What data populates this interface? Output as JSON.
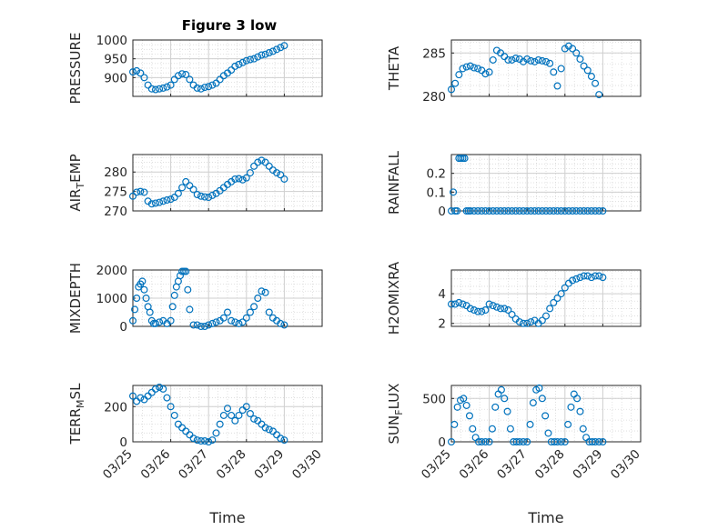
{
  "figure": {
    "title": "Figure 3 low",
    "marker_color": "#0072BD"
  },
  "chart_data": [
    {
      "type": "scatter",
      "ylabel": "PRESSURE",
      "xlim": [
        "03/25",
        "03/30"
      ],
      "ylim": [
        850,
        1000
      ],
      "yticks": [
        900,
        950,
        1000
      ],
      "x_days": [
        0.0,
        0.1,
        0.2,
        0.3,
        0.4,
        0.5,
        0.6,
        0.7,
        0.8,
        0.9,
        1.0,
        1.1,
        1.2,
        1.3,
        1.4,
        1.5,
        1.6,
        1.7,
        1.8,
        1.9,
        2.0,
        2.1,
        2.2,
        2.3,
        2.4,
        2.5,
        2.6,
        2.7,
        2.8,
        2.9,
        3.0,
        3.1,
        3.2,
        3.3,
        3.4,
        3.5,
        3.6,
        3.7,
        3.8,
        3.9,
        4.0
      ],
      "y": [
        915,
        918,
        912,
        900,
        880,
        870,
        868,
        870,
        872,
        875,
        880,
        895,
        905,
        910,
        908,
        895,
        880,
        872,
        870,
        874,
        876,
        880,
        885,
        895,
        905,
        912,
        920,
        930,
        935,
        940,
        945,
        948,
        950,
        955,
        960,
        962,
        966,
        970,
        975,
        980,
        985
      ]
    },
    {
      "type": "scatter",
      "ylabel": "THETA",
      "xlim": [
        "03/25",
        "03/30"
      ],
      "ylim": [
        280,
        286.5
      ],
      "yticks": [
        280,
        285
      ],
      "x_days": [
        0.0,
        0.1,
        0.2,
        0.3,
        0.4,
        0.5,
        0.6,
        0.7,
        0.8,
        0.9,
        1.0,
        1.1,
        1.2,
        1.3,
        1.4,
        1.5,
        1.6,
        1.7,
        1.8,
        1.9,
        2.0,
        2.1,
        2.2,
        2.3,
        2.4,
        2.5,
        2.6,
        2.7,
        2.8,
        2.9,
        3.0,
        3.1,
        3.2,
        3.3,
        3.4,
        3.5,
        3.6,
        3.7,
        3.8,
        3.9
      ],
      "y": [
        280.8,
        281.5,
        282.5,
        283.2,
        283.4,
        283.5,
        283.3,
        283.2,
        283.0,
        282.6,
        282.8,
        284.2,
        285.3,
        285.0,
        284.6,
        284.2,
        284.2,
        284.4,
        284.3,
        284.0,
        284.3,
        284.1,
        284.0,
        284.2,
        284.1,
        284.0,
        283.8,
        282.8,
        281.2,
        283.2,
        285.5,
        285.8,
        285.5,
        285.0,
        284.3,
        283.5,
        283.0,
        282.3,
        281.5,
        280.2
      ]
    },
    {
      "type": "scatter",
      "ylabel": "AIR_TEMP",
      "xlim": [
        "03/25",
        "03/30"
      ],
      "ylim": [
        270,
        284.5
      ],
      "yticks": [
        270,
        275,
        280
      ],
      "x_days": [
        0.0,
        0.1,
        0.2,
        0.3,
        0.4,
        0.5,
        0.6,
        0.7,
        0.8,
        0.9,
        1.0,
        1.1,
        1.2,
        1.3,
        1.4,
        1.5,
        1.6,
        1.7,
        1.8,
        1.9,
        2.0,
        2.1,
        2.2,
        2.3,
        2.4,
        2.5,
        2.6,
        2.7,
        2.8,
        2.9,
        3.0,
        3.1,
        3.2,
        3.3,
        3.4,
        3.5,
        3.6,
        3.7,
        3.8,
        3.9,
        4.0
      ],
      "y": [
        273.8,
        274.8,
        275.0,
        274.8,
        272.5,
        271.8,
        272.0,
        272.2,
        272.5,
        272.8,
        273.0,
        273.5,
        274.5,
        276.0,
        277.5,
        276.5,
        275.5,
        274.2,
        273.8,
        273.6,
        273.5,
        274.0,
        274.5,
        275.2,
        276.0,
        276.8,
        277.5,
        278.2,
        278.3,
        278.0,
        278.5,
        279.8,
        281.5,
        282.5,
        283.0,
        282.5,
        281.5,
        280.5,
        279.8,
        279.3,
        278.2
      ]
    },
    {
      "type": "scatter",
      "ylabel": "RAINFALL",
      "xlim": [
        "03/25",
        "03/30"
      ],
      "ylim": [
        0,
        0.3
      ],
      "yticks": [
        0,
        0.1,
        0.2
      ],
      "x_days": [
        0.0,
        0.05,
        0.1,
        0.15,
        0.2,
        0.25,
        0.3,
        0.35,
        0.4,
        0.45,
        0.5,
        0.6,
        0.7,
        0.8,
        0.9,
        1.0,
        1.1,
        1.2,
        1.3,
        1.4,
        1.5,
        1.6,
        1.7,
        1.8,
        1.9,
        2.0,
        2.1,
        2.2,
        2.3,
        2.4,
        2.5,
        2.6,
        2.7,
        2.8,
        2.9,
        3.0,
        3.1,
        3.2,
        3.3,
        3.4,
        3.5,
        3.6,
        3.7,
        3.8,
        3.9,
        4.0
      ],
      "y": [
        0,
        0.1,
        0,
        0,
        0.28,
        0.28,
        0.28,
        0.28,
        0,
        0,
        0,
        0,
        0,
        0,
        0,
        0,
        0,
        0,
        0,
        0,
        0,
        0,
        0,
        0,
        0,
        0,
        0,
        0,
        0,
        0,
        0,
        0,
        0,
        0,
        0,
        0,
        0,
        0,
        0,
        0,
        0,
        0,
        0,
        0,
        0,
        0
      ]
    },
    {
      "type": "scatter",
      "ylabel": "MIXDEPTH",
      "xlim": [
        "03/25",
        "03/30"
      ],
      "ylim": [
        0,
        2000
      ],
      "yticks": [
        0,
        1000,
        2000
      ],
      "x_days": [
        0.0,
        0.05,
        0.1,
        0.15,
        0.2,
        0.25,
        0.3,
        0.35,
        0.4,
        0.45,
        0.5,
        0.55,
        0.6,
        0.7,
        0.8,
        0.9,
        1.0,
        1.05,
        1.1,
        1.15,
        1.2,
        1.25,
        1.3,
        1.35,
        1.4,
        1.45,
        1.5,
        1.6,
        1.7,
        1.8,
        1.9,
        2.0,
        2.1,
        2.2,
        2.3,
        2.4,
        2.5,
        2.6,
        2.7,
        2.8,
        2.9,
        3.0,
        3.1,
        3.2,
        3.3,
        3.4,
        3.5,
        3.6,
        3.7,
        3.8,
        3.9,
        4.0
      ],
      "y": [
        200,
        600,
        1000,
        1400,
        1500,
        1600,
        1300,
        1000,
        700,
        500,
        200,
        100,
        100,
        150,
        200,
        100,
        200,
        700,
        1100,
        1400,
        1600,
        1800,
        1950,
        1950,
        1950,
        1300,
        600,
        50,
        50,
        0,
        0,
        50,
        100,
        150,
        200,
        300,
        500,
        200,
        150,
        100,
        150,
        300,
        500,
        700,
        1000,
        1250,
        1200,
        500,
        300,
        200,
        100,
        50
      ]
    },
    {
      "type": "scatter",
      "ylabel": "H2OMIXRA",
      "xlim": [
        "03/25",
        "03/30"
      ],
      "ylim": [
        1.8,
        5.6
      ],
      "yticks": [
        2,
        4
      ],
      "x_days": [
        0.0,
        0.1,
        0.2,
        0.3,
        0.4,
        0.5,
        0.6,
        0.7,
        0.8,
        0.9,
        1.0,
        1.1,
        1.2,
        1.3,
        1.4,
        1.5,
        1.6,
        1.7,
        1.8,
        1.9,
        2.0,
        2.1,
        2.2,
        2.3,
        2.4,
        2.5,
        2.6,
        2.7,
        2.8,
        2.9,
        3.0,
        3.1,
        3.2,
        3.3,
        3.4,
        3.5,
        3.6,
        3.7,
        3.8,
        3.9,
        4.0
      ],
      "y": [
        3.3,
        3.3,
        3.4,
        3.3,
        3.2,
        3.0,
        2.9,
        2.8,
        2.8,
        2.9,
        3.3,
        3.2,
        3.1,
        3.0,
        3.0,
        2.9,
        2.6,
        2.3,
        2.1,
        2.0,
        2.0,
        2.1,
        2.2,
        2.0,
        2.2,
        2.5,
        3.0,
        3.4,
        3.7,
        4.0,
        4.4,
        4.7,
        4.9,
        5.0,
        5.1,
        5.2,
        5.2,
        5.1,
        5.2,
        5.2,
        5.1
      ]
    },
    {
      "type": "scatter",
      "ylabel": "TERR_MSL",
      "xlim": [
        "03/25",
        "03/30"
      ],
      "ylim": [
        0,
        320
      ],
      "yticks": [
        0,
        200
      ],
      "x_days": [
        0.0,
        0.1,
        0.2,
        0.3,
        0.4,
        0.5,
        0.6,
        0.7,
        0.8,
        0.9,
        1.0,
        1.1,
        1.2,
        1.3,
        1.4,
        1.5,
        1.6,
        1.7,
        1.8,
        1.9,
        2.0,
        2.1,
        2.2,
        2.3,
        2.4,
        2.5,
        2.6,
        2.7,
        2.8,
        2.9,
        3.0,
        3.1,
        3.2,
        3.3,
        3.4,
        3.5,
        3.6,
        3.7,
        3.8,
        3.9,
        4.0
      ],
      "y": [
        260,
        230,
        250,
        240,
        260,
        280,
        300,
        310,
        300,
        250,
        200,
        150,
        100,
        80,
        60,
        40,
        20,
        10,
        5,
        5,
        0,
        10,
        50,
        100,
        150,
        190,
        150,
        120,
        150,
        180,
        200,
        160,
        130,
        120,
        100,
        80,
        70,
        60,
        40,
        20,
        10
      ]
    },
    {
      "type": "scatter",
      "ylabel": "SUN_FLUX",
      "xlim": [
        "03/25",
        "03/30"
      ],
      "ylim": [
        0,
        650
      ],
      "yticks": [
        0,
        500
      ],
      "x_days": [
        0.0,
        0.08,
        0.16,
        0.24,
        0.32,
        0.4,
        0.48,
        0.56,
        0.64,
        0.72,
        0.8,
        0.9,
        1.0,
        1.08,
        1.16,
        1.24,
        1.32,
        1.4,
        1.48,
        1.56,
        1.64,
        1.72,
        1.8,
        1.9,
        2.0,
        2.08,
        2.16,
        2.24,
        2.32,
        2.4,
        2.48,
        2.56,
        2.64,
        2.72,
        2.8,
        2.9,
        3.0,
        3.08,
        3.16,
        3.24,
        3.32,
        3.4,
        3.48,
        3.56,
        3.64,
        3.72,
        3.8,
        3.9,
        4.0
      ],
      "y": [
        0,
        200,
        400,
        480,
        500,
        420,
        300,
        150,
        50,
        0,
        0,
        0,
        0,
        150,
        400,
        550,
        600,
        500,
        350,
        150,
        0,
        0,
        0,
        0,
        0,
        200,
        450,
        600,
        620,
        500,
        300,
        100,
        0,
        0,
        0,
        0,
        0,
        200,
        400,
        550,
        500,
        350,
        150,
        50,
        0,
        0,
        0,
        0,
        0
      ]
    }
  ],
  "xaxis": {
    "ticks": [
      "03/25",
      "03/26",
      "03/27",
      "03/28",
      "03/29",
      "03/30"
    ],
    "label": "Time"
  }
}
